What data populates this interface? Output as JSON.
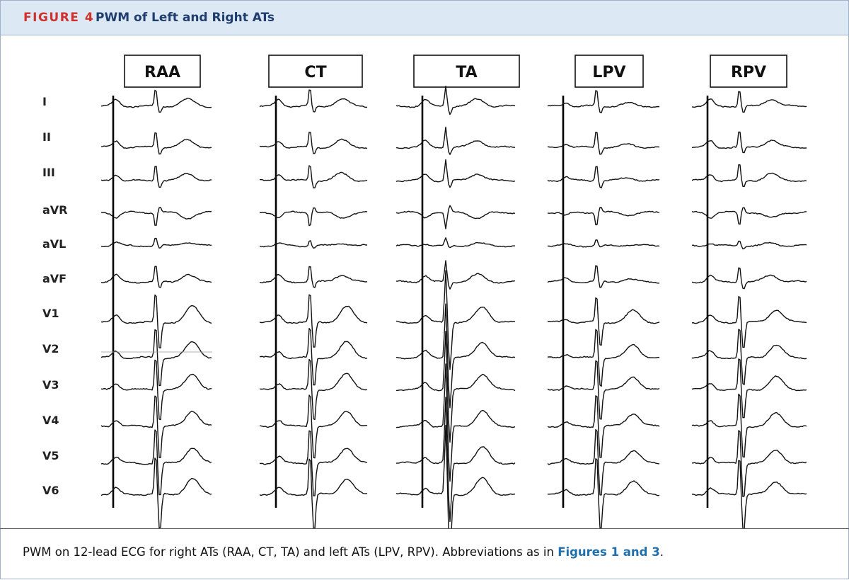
{
  "figure": {
    "label": "FIGURE 4",
    "title": "PWM of Left and Right ATs"
  },
  "columns": [
    {
      "label": "RAA"
    },
    {
      "label": "CT"
    },
    {
      "label": "TA"
    },
    {
      "label": "LPV"
    },
    {
      "label": "RPV"
    }
  ],
  "leads": [
    "I",
    "II",
    "III",
    "aVR",
    "aVL",
    "aVF",
    "V1",
    "V2",
    "V3",
    "V4",
    "V5",
    "V6"
  ],
  "caption": {
    "text": "PWM on 12-lead ECG for right ATs (RAA, CT, TA) and left ATs (LPV, RPV). Abbreviations as in ",
    "link": "Figures 1 and 3",
    "after": "."
  }
}
